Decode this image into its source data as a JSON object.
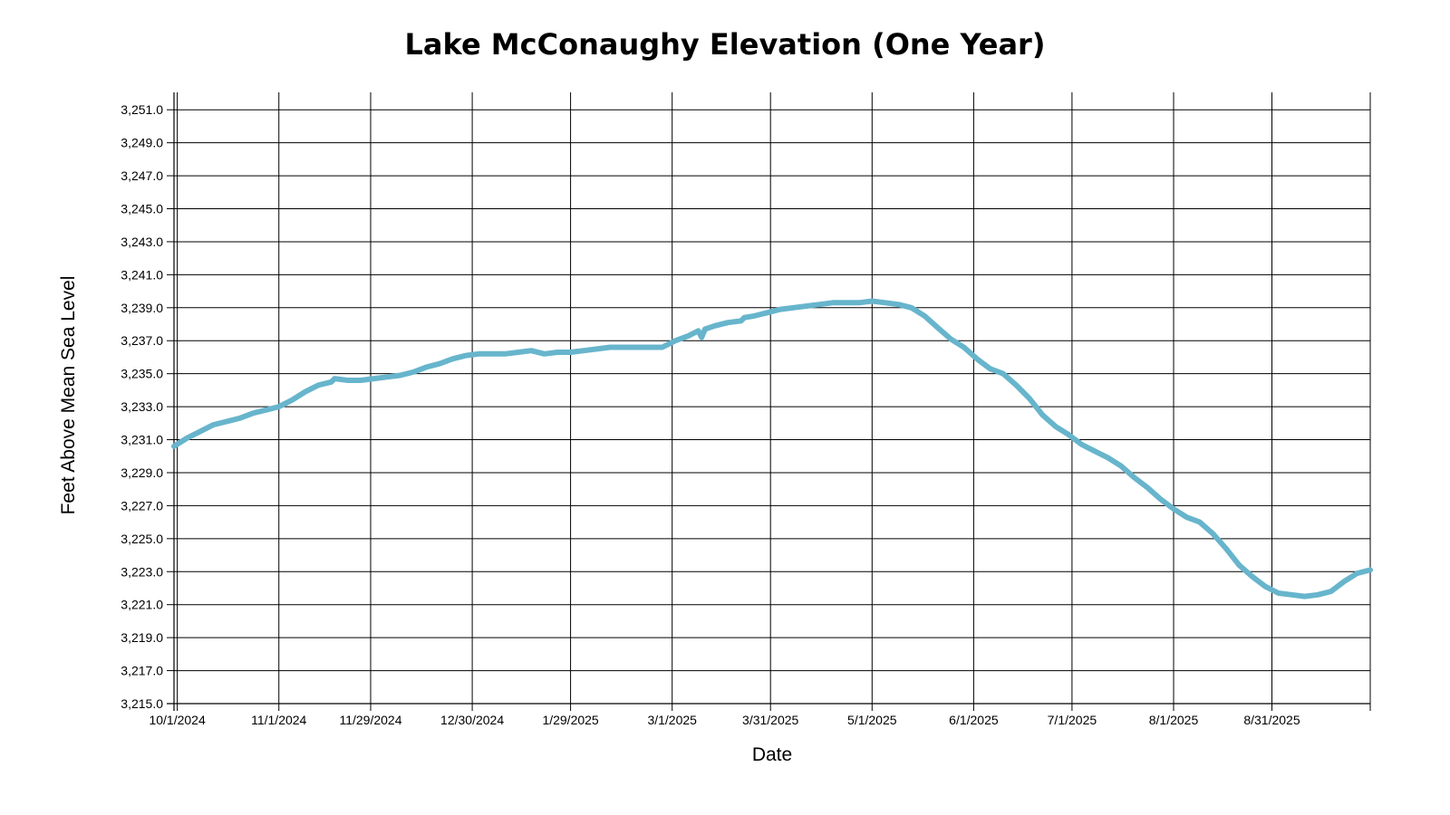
{
  "chart_data": {
    "type": "line",
    "title": "Lake McConaughy Elevation (One Year)",
    "xlabel": "Date",
    "ylabel": "Feet Above Mean Sea Level",
    "ylim": [
      3215.0,
      3252.0
    ],
    "grid": true,
    "y_ticks": [
      "3,215.0",
      "3,217.0",
      "3,219.0",
      "3,221.0",
      "3,223.0",
      "3,225.0",
      "3,227.0",
      "3,229.0",
      "3,231.0",
      "3,233.0",
      "3,235.0",
      "3,237.0",
      "3,239.0",
      "3,241.0",
      "3,243.0",
      "3,245.0",
      "3,247.0",
      "3,249.0",
      "3,251.0"
    ],
    "x_ticks": [
      {
        "label": "10/1/2024",
        "date": "2024-10-01"
      },
      {
        "label": "11/1/2024",
        "date": "2024-11-01"
      },
      {
        "label": "11/29/2024",
        "date": "2024-11-29"
      },
      {
        "label": "12/30/2024",
        "date": "2024-12-30"
      },
      {
        "label": "1/29/2025",
        "date": "2025-01-29"
      },
      {
        "label": "3/1/2025",
        "date": "2025-03-01"
      },
      {
        "label": "3/31/2025",
        "date": "2025-03-31"
      },
      {
        "label": "5/1/2025",
        "date": "2025-05-01"
      },
      {
        "label": "6/1/2025",
        "date": "2025-06-01"
      },
      {
        "label": "7/1/2025",
        "date": "2025-07-01"
      },
      {
        "label": "8/1/2025",
        "date": "2025-08-01"
      },
      {
        "label": "8/31/2025",
        "date": "2025-08-31"
      }
    ],
    "xlim": [
      "2024-09-30",
      "2025-09-30"
    ],
    "series": [
      {
        "color": "#67b5cc",
        "x": [
          "2024-09-30",
          "2024-10-04",
          "2024-10-08",
          "2024-10-12",
          "2024-10-16",
          "2024-10-20",
          "2024-10-24",
          "2024-10-28",
          "2024-11-01",
          "2024-11-05",
          "2024-11-09",
          "2024-11-13",
          "2024-11-17",
          "2024-11-18",
          "2024-11-22",
          "2024-11-26",
          "2024-11-30",
          "2024-12-04",
          "2024-12-08",
          "2024-12-12",
          "2024-12-16",
          "2024-12-20",
          "2024-12-24",
          "2024-12-28",
          "2025-01-01",
          "2025-01-05",
          "2025-01-09",
          "2025-01-13",
          "2025-01-17",
          "2025-01-21",
          "2025-01-25",
          "2025-01-29",
          "2025-02-02",
          "2025-02-06",
          "2025-02-10",
          "2025-02-14",
          "2025-02-18",
          "2025-02-22",
          "2025-02-26",
          "2025-03-02",
          "2025-03-06",
          "2025-03-09",
          "2025-03-10",
          "2025-03-11",
          "2025-03-14",
          "2025-03-18",
          "2025-03-22",
          "2025-03-23",
          "2025-03-26",
          "2025-03-30",
          "2025-04-03",
          "2025-04-07",
          "2025-04-11",
          "2025-04-15",
          "2025-04-19",
          "2025-04-23",
          "2025-04-27",
          "2025-05-01",
          "2025-05-05",
          "2025-05-09",
          "2025-05-13",
          "2025-05-17",
          "2025-05-21",
          "2025-05-25",
          "2025-05-29",
          "2025-06-02",
          "2025-06-06",
          "2025-06-10",
          "2025-06-14",
          "2025-06-18",
          "2025-06-22",
          "2025-06-26",
          "2025-06-30",
          "2025-07-04",
          "2025-07-08",
          "2025-07-12",
          "2025-07-16",
          "2025-07-20",
          "2025-07-24",
          "2025-07-28",
          "2025-08-01",
          "2025-08-05",
          "2025-08-09",
          "2025-08-13",
          "2025-08-17",
          "2025-08-21",
          "2025-08-25",
          "2025-08-29",
          "2025-09-02",
          "2025-09-06",
          "2025-09-10",
          "2025-09-14",
          "2025-09-18",
          "2025-09-22",
          "2025-09-26",
          "2025-09-30"
        ],
        "y": [
          3230.6,
          3231.1,
          3231.5,
          3231.9,
          3232.1,
          3232.3,
          3232.6,
          3232.8,
          3233.0,
          3233.4,
          3233.9,
          3234.3,
          3234.5,
          3234.7,
          3234.6,
          3234.6,
          3234.7,
          3234.8,
          3234.9,
          3235.1,
          3235.4,
          3235.6,
          3235.9,
          3236.1,
          3236.2,
          3236.2,
          3236.2,
          3236.3,
          3236.4,
          3236.2,
          3236.3,
          3236.3,
          3236.4,
          3236.5,
          3236.6,
          3236.6,
          3236.6,
          3236.6,
          3236.6,
          3237.0,
          3237.3,
          3237.6,
          3237.2,
          3237.7,
          3237.9,
          3238.1,
          3238.2,
          3238.4,
          3238.5,
          3238.7,
          3238.9,
          3239.0,
          3239.1,
          3239.2,
          3239.3,
          3239.3,
          3239.3,
          3239.4,
          3239.3,
          3239.2,
          3239.0,
          3238.5,
          3237.8,
          3237.1,
          3236.6,
          3235.9,
          3235.3,
          3235.0,
          3234.3,
          3233.5,
          3232.5,
          3231.8,
          3231.3,
          3230.7,
          3230.3,
          3229.9,
          3229.4,
          3228.7,
          3228.1,
          3227.4,
          3226.8,
          3226.3,
          3226.0,
          3225.3,
          3224.4,
          3223.4,
          3222.7,
          3222.1,
          3221.7,
          3221.6,
          3221.5,
          3221.6,
          3221.8,
          3222.4,
          3222.9,
          3223.1
        ]
      }
    ]
  }
}
